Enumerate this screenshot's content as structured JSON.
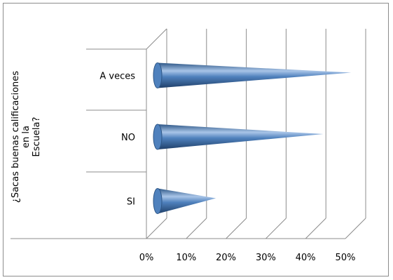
{
  "chart_data": {
    "type": "bar",
    "orientation": "horizontal",
    "style": "3d-cone",
    "categories": [
      "SI",
      "NO",
      "A veces"
    ],
    "values": [
      0.15,
      0.42,
      0.49
    ],
    "ylabel_lines": [
      "¿Sacas buenas calificaciones",
      "en la",
      "Escuela?"
    ],
    "xlabel": "",
    "xlim": [
      0,
      0.5
    ],
    "x_ticks": [
      "0%",
      "10%",
      "20%",
      "30%",
      "40%",
      "50%"
    ],
    "grid": true,
    "colors": {
      "bar": "#4f81bd",
      "bar_dark": "#2d5686",
      "bar_light": "#a9c5e8",
      "grid": "#8c8c8c"
    }
  }
}
